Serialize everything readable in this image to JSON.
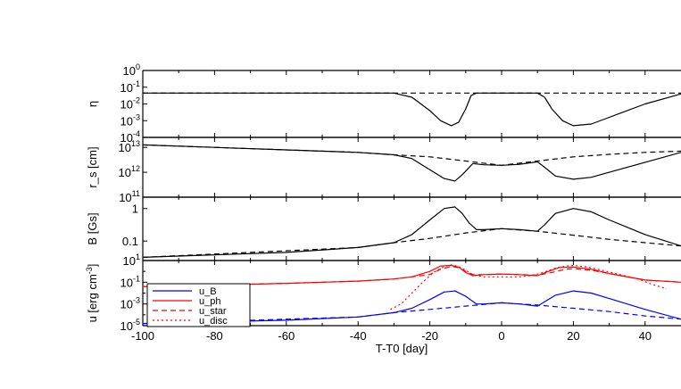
{
  "figure": {
    "xlabel": "T-T0 [day]",
    "xlim": [
      -100,
      50
    ],
    "x_ticks": [
      -100,
      -80,
      -60,
      -40,
      -20,
      0,
      20,
      40
    ]
  },
  "chart_data": [
    {
      "type": "line",
      "panel": "eta",
      "ylabel": "η",
      "yscale": "log",
      "ylim_exp": [
        -4,
        0
      ],
      "y_tick_exps": [
        -4,
        -3,
        -2,
        -1,
        0
      ],
      "series": [
        {
          "style": "solid",
          "color": "#000000",
          "x": [
            -100,
            -40,
            -30,
            -25,
            -20,
            -17,
            -14,
            -12,
            -10,
            -8.5,
            -7,
            0,
            10,
            12,
            14,
            17,
            20,
            25,
            30,
            40,
            50
          ],
          "log_y": [
            -1.35,
            -1.35,
            -1.35,
            -1.6,
            -2.4,
            -3.0,
            -3.3,
            -3.1,
            -2.3,
            -1.5,
            -1.35,
            -1.35,
            -1.35,
            -1.6,
            -2.3,
            -3.0,
            -3.3,
            -3.2,
            -2.8,
            -2.0,
            -1.4
          ]
        },
        {
          "style": "dashed",
          "color": "#000000",
          "x": [
            -100,
            50
          ],
          "log_y": [
            -1.35,
            -1.35
          ]
        }
      ]
    },
    {
      "type": "line",
      "panel": "rs",
      "ylabel": "r_s [cm]",
      "yscale": "log",
      "ylim_exp": [
        11,
        13.4
      ],
      "y_tick_exps": [
        11,
        12,
        13
      ],
      "series": [
        {
          "style": "solid",
          "color": "#000000",
          "x": [
            -100,
            -80,
            -60,
            -40,
            -30,
            -25,
            -20,
            -16,
            -13,
            -11,
            -8,
            -5,
            0,
            5,
            10,
            12,
            15,
            20,
            25,
            30,
            40,
            50
          ],
          "log_y": [
            13.1,
            13.0,
            12.9,
            12.8,
            12.7,
            12.55,
            12.1,
            11.75,
            11.65,
            11.9,
            12.35,
            12.3,
            12.28,
            12.32,
            12.42,
            12.2,
            11.85,
            11.72,
            11.8,
            12.0,
            12.4,
            12.8
          ]
        },
        {
          "style": "dashed",
          "color": "#000000",
          "x": [
            -100,
            -40,
            -30,
            -20,
            -10,
            0,
            10,
            20,
            30,
            40,
            50
          ],
          "log_y": [
            13.1,
            12.8,
            12.7,
            12.62,
            12.45,
            12.28,
            12.45,
            12.62,
            12.72,
            12.8,
            12.85
          ]
        }
      ]
    },
    {
      "type": "line",
      "panel": "B",
      "ylabel": "B [Gs]",
      "yscale": "log",
      "ylim_exp": [
        -1.6,
        0.35
      ],
      "y_ticks": [
        {
          "label": "0.1",
          "exp": -1
        },
        {
          "label": "1",
          "exp": 0
        }
      ],
      "series": [
        {
          "style": "solid",
          "color": "#000000",
          "x": [
            -100,
            -60,
            -40,
            -30,
            -25,
            -20,
            -16,
            -13,
            -11,
            -9,
            -7,
            -5,
            0,
            5,
            10,
            12,
            15,
            20,
            25,
            30,
            40,
            50
          ],
          "log_y": [
            -1.5,
            -1.35,
            -1.2,
            -1.05,
            -0.8,
            -0.35,
            0,
            0.05,
            -0.15,
            -0.45,
            -0.65,
            -0.65,
            -0.62,
            -0.65,
            -0.7,
            -0.5,
            -0.15,
            0,
            -0.1,
            -0.35,
            -0.8,
            -1.15
          ]
        },
        {
          "style": "dashed",
          "color": "#000000",
          "x": [
            -100,
            -40,
            -30,
            -20,
            -10,
            0,
            10,
            20,
            30,
            40,
            50
          ],
          "log_y": [
            -1.5,
            -1.2,
            -1.05,
            -0.92,
            -0.75,
            -0.62,
            -0.7,
            -0.82,
            -0.95,
            -1.05,
            -1.15
          ]
        }
      ]
    },
    {
      "type": "line",
      "panel": "u",
      "ylabel": "u [erg cm-3]",
      "ylabel_main": "u [erg cm",
      "ylabel_sup": "-3",
      "ylabel_close": "]",
      "yscale": "log",
      "ylim_exp": [
        -5,
        1
      ],
      "y_tick_exps": [
        -5,
        -3,
        -1,
        1
      ],
      "legend": {
        "position": "lower-left",
        "entries": [
          {
            "label": "u_B",
            "color": "#0000ff",
            "style": "solid"
          },
          {
            "label": "u_ph",
            "color": "#ff0000",
            "style": "solid"
          },
          {
            "label": "u_star",
            "color": "#ff0000",
            "style": "dashed"
          },
          {
            "label": "u_disc",
            "color": "#ff0000",
            "style": "dotted"
          }
        ]
      },
      "series": [
        {
          "name": "u_B",
          "style": "solid",
          "color": "#0000ff",
          "x": [
            -100,
            -60,
            -40,
            -30,
            -25,
            -20,
            -16,
            -13,
            -10,
            -7,
            -5,
            0,
            5,
            10,
            12,
            15,
            20,
            25,
            30,
            40,
            50
          ],
          "log_y": [
            -4.8,
            -4.5,
            -4.2,
            -3.8,
            -3.4,
            -2.6,
            -1.9,
            -1.8,
            -2.3,
            -3.0,
            -3.0,
            -2.9,
            -3.0,
            -3.2,
            -2.8,
            -2.2,
            -1.8,
            -2.0,
            -2.5,
            -3.5,
            -4.4
          ]
        },
        {
          "name": "u_B (dashed)",
          "style": "dashed",
          "color": "#0000ff",
          "x": [
            -100,
            -40,
            -30,
            -20,
            -10,
            0,
            10,
            20,
            30,
            40,
            50
          ],
          "log_y": [
            -4.8,
            -4.2,
            -3.8,
            -3.5,
            -3.2,
            -2.9,
            -3.1,
            -3.4,
            -3.7,
            -4.1,
            -4.4
          ]
        },
        {
          "name": "u_ph",
          "style": "solid",
          "color": "#ff0000",
          "x": [
            -100,
            -60,
            -40,
            -30,
            -25,
            -20,
            -17,
            -14,
            -12,
            -10,
            -8,
            -5,
            0,
            5,
            10,
            13,
            16,
            20,
            25,
            30,
            40,
            50
          ],
          "log_y": [
            -1.4,
            -1.1,
            -0.9,
            -0.7,
            -0.5,
            0,
            0.5,
            0.55,
            0.4,
            -0.1,
            -0.4,
            -0.3,
            -0.25,
            -0.3,
            -0.4,
            0,
            0.35,
            0.4,
            0.2,
            -0.2,
            -0.8,
            -1.0
          ]
        },
        {
          "name": "u_star",
          "style": "dashed",
          "color": "#ff0000",
          "x": [
            -100,
            -60,
            -40,
            -30,
            -20,
            -17,
            -14,
            -12,
            -10,
            -8,
            -5,
            0,
            5,
            10,
            14,
            18,
            20,
            25,
            30,
            40,
            50
          ],
          "log_y": [
            -1.4,
            -1.1,
            -0.9,
            -0.7,
            -0.3,
            0.2,
            0.45,
            0.35,
            0,
            -0.3,
            -0.3,
            -0.25,
            -0.3,
            -0.35,
            -0.1,
            0.2,
            0.25,
            0.1,
            -0.2,
            -0.8,
            -1.0
          ]
        },
        {
          "name": "u_disc",
          "style": "dotted",
          "color": "#ff0000",
          "x": [
            -31,
            -28,
            -25,
            -22,
            -19,
            -16,
            -14,
            -12,
            -10,
            -8,
            -5,
            5,
            9,
            12,
            15,
            18,
            20,
            24,
            28,
            33,
            38,
            42,
            46
          ],
          "log_y": [
            -3.5,
            -3.0,
            -2.0,
            -1.0,
            -0.1,
            0.45,
            0.6,
            0.45,
            0.1,
            -0.3,
            -0.5,
            -0.5,
            -0.35,
            -0.05,
            0.3,
            0.5,
            0.55,
            0.4,
            0.1,
            -0.3,
            -0.7,
            -1.2,
            -1.6
          ]
        }
      ]
    }
  ]
}
